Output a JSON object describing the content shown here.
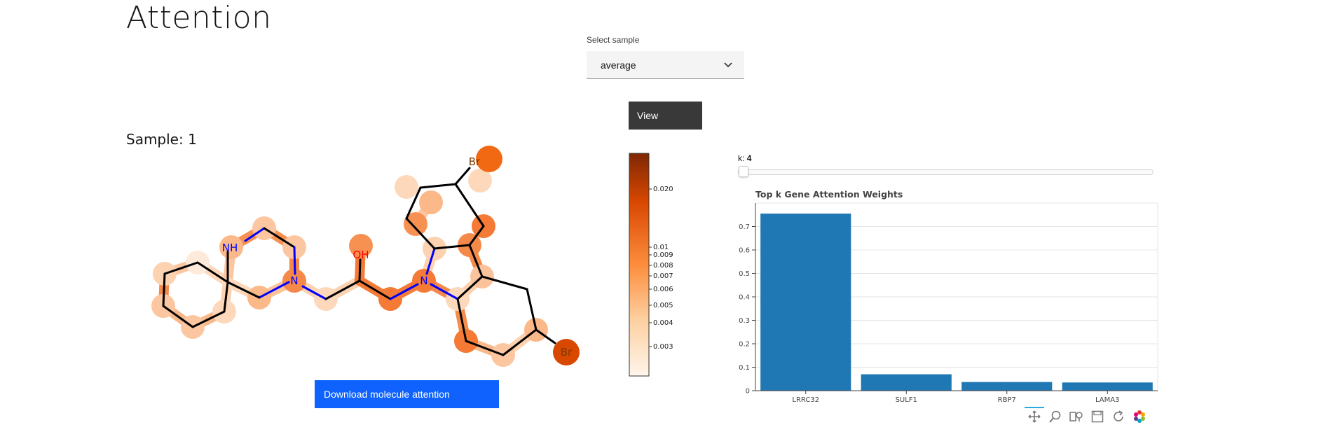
{
  "page": {
    "title": "Attention"
  },
  "sample_select": {
    "label": "Select sample",
    "value": "average"
  },
  "view_button": {
    "label": "View"
  },
  "sample_heading": "Sample: 1",
  "download_button": {
    "label": "Download molecule attention"
  },
  "molecule": {
    "atom_labels": {
      "nh": "NH",
      "n1": "N",
      "oh": "OH",
      "n2": "N",
      "br1": "Br",
      "br2": "Br"
    },
    "colors": {
      "bond": "#000000",
      "nitrogen": "#0000ff",
      "oxygen": "#ff0000",
      "bromine": "#7a3a00"
    }
  },
  "colorbar": {
    "ticks": [
      "0.020",
      "0.01",
      "0.009",
      "0.008",
      "0.007",
      "0.006",
      "0.005",
      "0.004",
      "0.003"
    ],
    "colors": [
      "#fff5eb",
      "#fdd0a2",
      "#fd8d3c",
      "#d94801",
      "#7f2704"
    ]
  },
  "k_slider": {
    "label": "k:",
    "value": "4"
  },
  "chart_data": {
    "type": "bar",
    "title": "Top k Gene Attention Weights",
    "categories": [
      "LRRC32",
      "SULF1",
      "RBP7",
      "LAMA3"
    ],
    "values": [
      0.755,
      0.07,
      0.037,
      0.035
    ],
    "ylim": [
      0,
      0.8
    ],
    "yticks": [
      "0",
      "0.1",
      "0.2",
      "0.3",
      "0.4",
      "0.5",
      "0.6",
      "0.7"
    ],
    "xlabel": "",
    "ylabel": "",
    "grid": true,
    "bar_color": "#1f77b4"
  },
  "toolbar": {
    "icons": [
      "pan-icon",
      "wheel-zoom-icon",
      "box-zoom-icon",
      "save-icon",
      "reset-icon",
      "bokeh-logo-icon"
    ]
  }
}
